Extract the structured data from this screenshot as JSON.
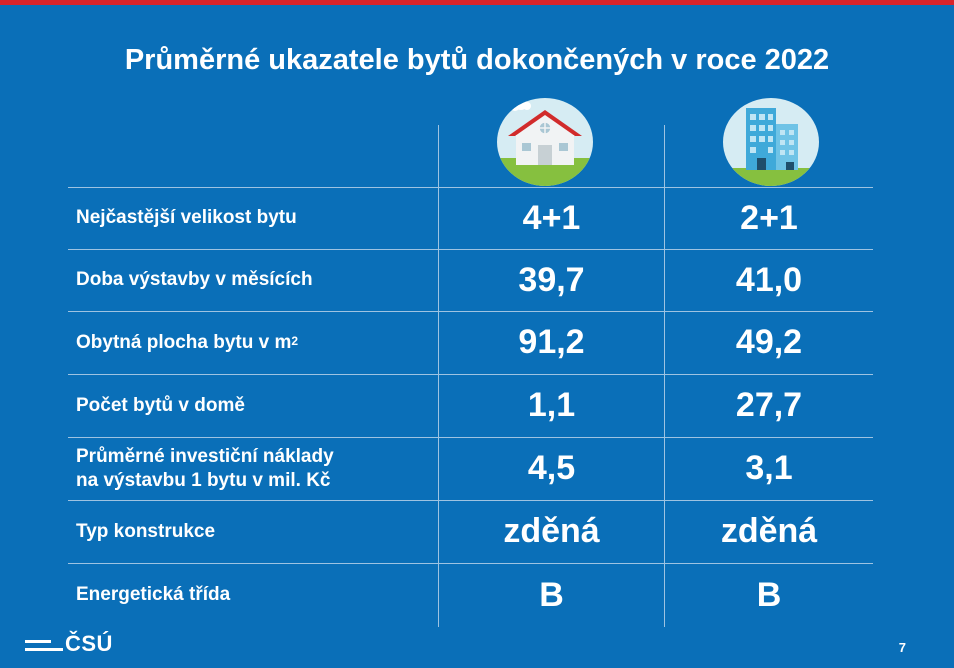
{
  "title": "Průměrné ukazatele bytů dokončených v roce 2022",
  "columns": [
    {
      "icon": "family-house-icon"
    },
    {
      "icon": "apartment-building-icon"
    }
  ],
  "rows": [
    {
      "label": "Nejčastější velikost bytu",
      "values": [
        "4+1",
        "2+1"
      ]
    },
    {
      "label": "Doba výstavby v měsících",
      "values": [
        "39,7",
        "41,0"
      ]
    },
    {
      "label": "Obytná plocha bytu v m",
      "label_sup": "2",
      "values": [
        "91,2",
        "49,2"
      ]
    },
    {
      "label": "Počet bytů v domě",
      "values": [
        "1,1",
        "27,7"
      ]
    },
    {
      "label_line1": "Průměrné investiční náklady",
      "label_line2": "na výstavbu 1 bytu v mil. Kč",
      "values": [
        "4,5",
        "3,1"
      ]
    },
    {
      "label": "Typ konstrukce",
      "values": [
        "zděná",
        "zděná"
      ]
    },
    {
      "label": "Energetická třída",
      "values": [
        "B",
        "B"
      ]
    }
  ],
  "logo_text": "ČSÚ",
  "page_number": "7",
  "colors": {
    "background": "#0a6fb8",
    "accent_bar": "#d9242b",
    "grid_lines": "#9ec3e2",
    "text": "#ffffff"
  }
}
